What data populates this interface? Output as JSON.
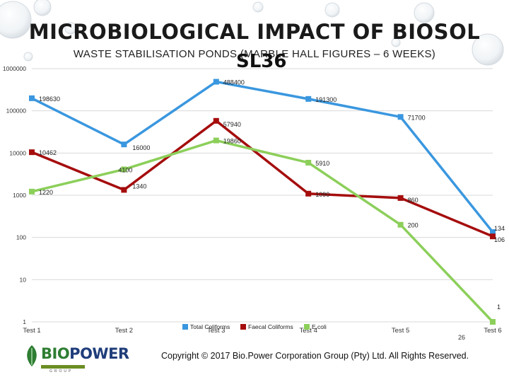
{
  "slide": {
    "title": "MICROBIOLOGICAL IMPACT OF BIOSOL",
    "subtitle": "WASTE STABILISATION PONDS (MARBLE HALL FIGURES – 6 WEEKS)",
    "sl_label": "SL36",
    "copyright": "Copyright © 2017 Bio.Power Corporation Group (Pty) Ltd. All Rights Reserved.",
    "page_number": "26"
  },
  "logo": {
    "bio": "BIO",
    "power": "POWER",
    "sub": "GROUP"
  },
  "colors": {
    "total_coliforms": "#3a97df",
    "faecal_coliforms": "#a50d0d",
    "ecoli": "#8ccf5a",
    "grid": "#d9d9d9",
    "axis_text": "#333333"
  },
  "chart_data": {
    "type": "line",
    "y_scale": "log",
    "ylim": [
      1,
      1000000
    ],
    "y_ticks": [
      "1",
      "10",
      "100",
      "1000",
      "10000",
      "100000",
      "1000000"
    ],
    "categories": [
      "Test 1",
      "Test 2",
      "Test 3",
      "Test 4",
      "Test 5",
      "Test 6"
    ],
    "series": [
      {
        "name": "Total Coliforms",
        "color_key": "total_coliforms",
        "values": [
          198630,
          16000,
          488400,
          191300,
          71700,
          134
        ],
        "labels": [
          "198630",
          "16000",
          "488400",
          "191300",
          "71700",
          "134"
        ]
      },
      {
        "name": "Faecal Coliforms",
        "color_key": "faecal_coliforms",
        "values": [
          10462,
          1340,
          57940,
          1090,
          860,
          106
        ],
        "labels": [
          "10462",
          "1340",
          "57940",
          "1090",
          "860",
          "106"
        ]
      },
      {
        "name": "E.coli",
        "color_key": "ecoli",
        "values": [
          1220,
          4100,
          19860,
          5910,
          200,
          1
        ],
        "labels": [
          "1220",
          "4100",
          "19860",
          "5910",
          "200",
          "1"
        ]
      }
    ],
    "legend_position": "bottom"
  }
}
